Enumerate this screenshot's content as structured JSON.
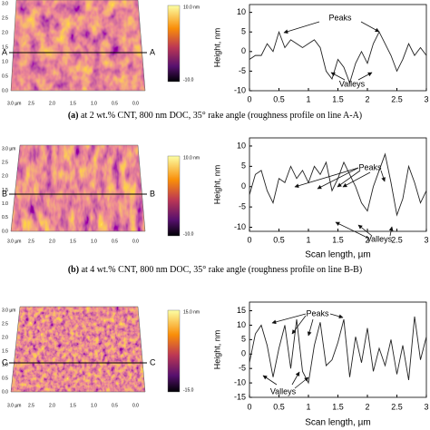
{
  "panels": [
    {
      "tag": "(a)",
      "caption": " at 2 wt.% CNT, 800 nm DOC, 35° rake angle (roughness profile on line A-A)",
      "line_label": [
        "A",
        "A"
      ],
      "colorbar": [
        "10.0 nm",
        "-10.0"
      ],
      "image_yticks": [
        "3.0",
        "2.5",
        "2.0",
        "1.5",
        "1.0",
        "0.5",
        "0.0"
      ],
      "image_xticks": [
        "3.0 µm",
        "2.5",
        "2.0",
        "1.5",
        "1.0",
        "0.5",
        "0.0"
      ]
    },
    {
      "tag": "(b)",
      "caption": " at 4 wt.% CNT, 800 nm DOC, 35° rake angle (roughness profile on line B-B)",
      "line_label": [
        "B",
        "B"
      ],
      "colorbar": [
        "10.0 nm",
        "-10.0"
      ],
      "image_yticks": [
        "3.0 µm",
        "2.5",
        "2.0",
        "1.5",
        "1.0",
        "0.5",
        "0.0"
      ],
      "image_xticks": [
        "3.0 µm",
        "2.5",
        "2.0",
        "1.5",
        "1.0",
        "0.5",
        "0.0"
      ]
    },
    {
      "line_label": [
        "C",
        "C"
      ],
      "colorbar": [
        "15.0 nm",
        "-15.0"
      ],
      "image_yticks": [
        "3.0 µm",
        "2.5",
        "2.0",
        "1.5",
        "1.0",
        "0.5",
        "0.0"
      ],
      "image_xticks": [
        "3.0 µm",
        "2.5",
        "2.0",
        "1.5",
        "1.0",
        "0.5",
        "0.0"
      ]
    }
  ],
  "chart_data": [
    {
      "type": "line",
      "ylabel": "Height, nm",
      "annotations": [
        "Peaks",
        "Valleys"
      ],
      "x": [
        0,
        0.1,
        0.2,
        0.3,
        0.4,
        0.5,
        0.6,
        0.7,
        0.8,
        0.9,
        1,
        1.1,
        1.2,
        1.3,
        1.4,
        1.5,
        1.6,
        1.7,
        1.8,
        1.9,
        2,
        2.1,
        2.2,
        2.3,
        2.4,
        2.5,
        2.6,
        2.7,
        2.8,
        2.9,
        3
      ],
      "series": [
        {
          "color": "#222222",
          "values": [
            -2,
            -1,
            -1,
            2,
            0,
            5,
            1,
            3,
            2,
            1,
            2,
            3,
            1,
            -5,
            -7,
            -2,
            -4,
            -8,
            -3,
            0,
            -3,
            2,
            5,
            2,
            -1,
            -5,
            -2,
            2,
            -1,
            1,
            -1
          ]
        }
      ],
      "xlim": [
        0,
        3
      ],
      "ylim": [
        -10,
        12
      ],
      "xticks": [
        0,
        0.5,
        1,
        1.5,
        2,
        2.5,
        3
      ],
      "yticks": [
        -10,
        -5,
        0,
        5,
        10
      ]
    },
    {
      "type": "line",
      "ylabel": "Height, nm",
      "xlabel": "Scan length, µm",
      "annotations": [
        "Peaks",
        "Valleys"
      ],
      "x": [
        0,
        0.1,
        0.2,
        0.3,
        0.4,
        0.5,
        0.6,
        0.7,
        0.8,
        0.9,
        1,
        1.1,
        1.2,
        1.3,
        1.4,
        1.5,
        1.6,
        1.7,
        1.8,
        1.9,
        2,
        2.1,
        2.2,
        2.3,
        2.4,
        2.5,
        2.6,
        2.7,
        2.8,
        2.9,
        3
      ],
      "series": [
        {
          "color": "#222222",
          "values": [
            -2,
            3,
            4,
            -1,
            -4,
            2,
            1,
            5,
            2,
            4,
            1,
            5,
            3,
            6,
            -1,
            2,
            6,
            3,
            0,
            -4,
            -6,
            0,
            4,
            8,
            1,
            -7,
            -3,
            5,
            1,
            -4,
            -1
          ]
        }
      ],
      "xlim": [
        0,
        3
      ],
      "ylim": [
        -11,
        12
      ],
      "xticks": [
        0,
        0.5,
        1,
        1.5,
        2,
        2.5,
        3
      ],
      "yticks": [
        -10,
        -5,
        0,
        5,
        10
      ]
    },
    {
      "type": "line",
      "ylabel": "Height, nm",
      "xlabel": "Scan length, µm",
      "annotations": [
        "Peaks",
        "Valleys"
      ],
      "x": [
        0,
        0.1,
        0.2,
        0.3,
        0.4,
        0.5,
        0.6,
        0.7,
        0.8,
        0.9,
        1,
        1.1,
        1.2,
        1.3,
        1.4,
        1.5,
        1.6,
        1.7,
        1.8,
        1.9,
        2,
        2.1,
        2.2,
        2.3,
        2.4,
        2.5,
        2.6,
        2.7,
        2.8,
        2.9,
        3
      ],
      "series": [
        {
          "color": "#222222",
          "values": [
            -3,
            7,
            10,
            3,
            -8,
            2,
            10,
            -5,
            12,
            -6,
            -10,
            3,
            11,
            -4,
            -2,
            4,
            12,
            -8,
            6,
            -3,
            9,
            -6,
            2,
            -4,
            5,
            -7,
            3,
            -9,
            13,
            -2,
            6
          ]
        }
      ],
      "xlim": [
        0,
        3
      ],
      "ylim": [
        -15,
        18
      ],
      "xticks": [
        0,
        0.5,
        1,
        1.5,
        2,
        2.5,
        3
      ],
      "yticks": [
        -15,
        -10,
        -5,
        0,
        5,
        10,
        15
      ]
    }
  ]
}
